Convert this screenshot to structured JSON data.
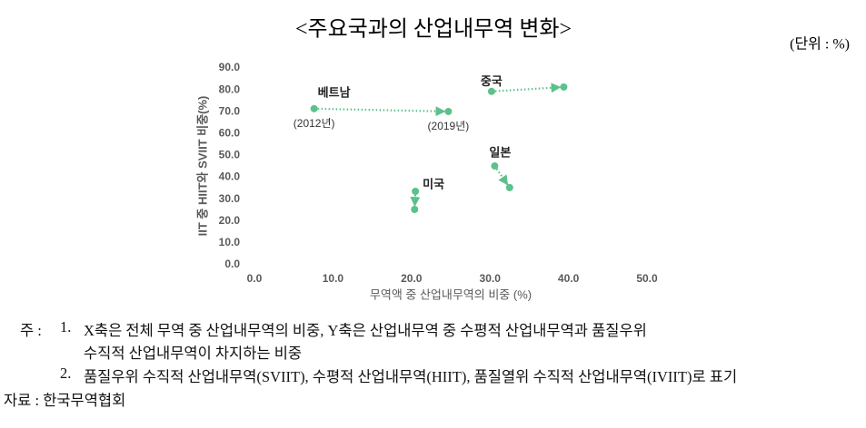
{
  "title": "<주요국과의 산업내무역 변화>",
  "unit": "(단위 : %)",
  "chart_data": {
    "type": "scatter",
    "xlabel": "무역액 중 산업내무역의 비중 (%)",
    "ylabel": "IIT 중 HIIT와 SVIIT 비중(%)",
    "xlim": [
      0,
      50
    ],
    "ylim": [
      0,
      90
    ],
    "xticks": [
      {
        "value": 0,
        "label": "0.0"
      },
      {
        "value": 10,
        "label": "10.0"
      },
      {
        "value": 20,
        "label": "20.0"
      },
      {
        "value": 30,
        "label": "30.0"
      },
      {
        "value": 40,
        "label": "40.0"
      },
      {
        "value": 50,
        "label": "50.0"
      }
    ],
    "yticks": [
      {
        "value": 0,
        "label": "0.0"
      },
      {
        "value": 10,
        "label": "10.0"
      },
      {
        "value": 20,
        "label": "20.0"
      },
      {
        "value": 30,
        "label": "30.0"
      },
      {
        "value": 40,
        "label": "40.0"
      },
      {
        "value": 50,
        "label": "50.0"
      },
      {
        "value": 60,
        "label": "60.0"
      },
      {
        "value": 70,
        "label": "70.0"
      },
      {
        "value": 80,
        "label": "80.0"
      },
      {
        "value": 90,
        "label": "90.0"
      }
    ],
    "annotations": [
      "(2012년)",
      "(2019년)"
    ],
    "series": [
      {
        "name": "베트남",
        "color": "#5cc18b",
        "x": [
          7.6,
          24.7
        ],
        "values": [
          71.4,
          70.1
        ]
      },
      {
        "name": "중국",
        "color": "#5cc18b",
        "x": [
          30.2,
          39.4
        ],
        "values": [
          79.3,
          81.3
        ]
      },
      {
        "name": "일본",
        "color": "#5cc18b",
        "x": [
          30.6,
          32.5
        ],
        "values": [
          45.2,
          35.3
        ]
      },
      {
        "name": "미국",
        "color": "#5cc18b",
        "x": [
          20.5,
          20.4
        ],
        "values": [
          33.6,
          25.3
        ]
      }
    ]
  },
  "notes": {
    "label": "주 :",
    "items": [
      {
        "number": "1.",
        "lines": [
          "X축은 전체 무역 중 산업내무역의 비중, Y축은 산업내무역 중 수평적 산업내무역과 품질우위",
          "수직적 산업내무역이 차지하는 비중"
        ]
      },
      {
        "number": "2.",
        "lines": [
          "품질우위 수직적 산업내무역(SVIIT), 수평적 산업내무역(HIIT), 품질열위 수직적 산업내무역(IVIIT)로 표기"
        ]
      }
    ],
    "source": "자료 : 한국무역협회"
  }
}
